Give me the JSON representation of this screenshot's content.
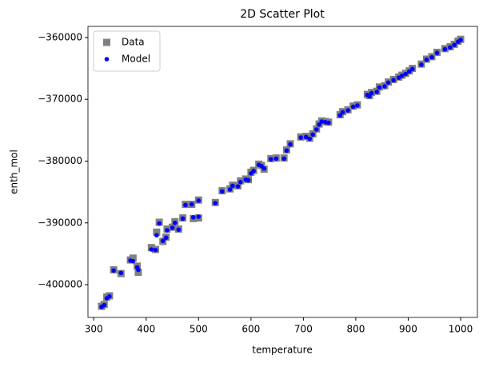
{
  "chart_data": {
    "type": "scatter",
    "title": "2D Scatter Plot",
    "x_label": "temperature",
    "y_label": "enth_mol",
    "x": [
      315,
      320,
      325,
      330,
      338,
      352,
      370,
      375,
      383,
      385,
      410,
      418,
      420,
      425,
      432,
      438,
      440,
      450,
      455,
      462,
      470,
      475,
      487,
      490,
      500,
      500,
      532,
      545,
      560,
      565,
      575,
      580,
      590,
      595,
      600,
      605,
      615,
      620,
      625,
      638,
      648,
      663,
      668,
      675,
      695,
      705,
      712,
      718,
      725,
      730,
      735,
      742,
      748,
      770,
      775,
      785,
      795,
      803,
      822,
      826,
      830,
      840,
      845,
      855,
      862,
      872,
      882,
      888,
      895,
      902,
      908,
      925,
      935,
      945,
      955,
      970,
      980,
      988,
      995,
      1000
    ],
    "series": [
      {
        "name": "Data",
        "color": "#808080",
        "marker": "square",
        "values": [
          -403500,
          -403200,
          -402000,
          -401800,
          -397600,
          -398200,
          -396000,
          -395700,
          -397000,
          -398000,
          -394000,
          -394300,
          -391500,
          -389900,
          -393000,
          -392300,
          -391000,
          -390700,
          -389800,
          -391000,
          -389200,
          -387000,
          -387000,
          -389300,
          -386300,
          -389200,
          -386700,
          -384800,
          -384500,
          -383900,
          -384000,
          -383200,
          -382900,
          -383000,
          -381800,
          -381500,
          -380500,
          -380700,
          -381300,
          -379600,
          -379500,
          -379500,
          -378200,
          -377200,
          -376100,
          -376000,
          -376300,
          -375600,
          -374800,
          -374000,
          -373500,
          -373600,
          -373700,
          -372500,
          -372000,
          -371700,
          -371100,
          -370900,
          -369200,
          -369400,
          -368900,
          -368700,
          -368000,
          -367800,
          -367200,
          -366800,
          -366400,
          -366100,
          -365800,
          -365400,
          -365000,
          -364300,
          -363500,
          -363100,
          -362400,
          -361800,
          -361500,
          -361100,
          -360600,
          -360300
        ]
      },
      {
        "name": "Model",
        "color": "#0000ff",
        "marker": "circle",
        "values": [
          -403600,
          -403300,
          -402200,
          -401900,
          -397700,
          -398100,
          -396100,
          -396200,
          -397200,
          -397600,
          -394300,
          -394400,
          -392000,
          -390100,
          -392900,
          -392400,
          -391200,
          -390800,
          -390000,
          -391100,
          -389300,
          -387100,
          -387000,
          -389100,
          -386400,
          -389000,
          -386800,
          -384900,
          -384600,
          -384000,
          -384100,
          -383400,
          -383000,
          -383100,
          -382000,
          -381600,
          -380600,
          -380800,
          -381200,
          -379700,
          -379600,
          -379600,
          -378300,
          -377300,
          -376200,
          -376100,
          -376400,
          -375700,
          -374900,
          -374100,
          -373600,
          -373700,
          -373800,
          -372600,
          -372100,
          -371800,
          -371200,
          -371000,
          -369300,
          -369500,
          -369000,
          -368800,
          -368100,
          -367900,
          -367300,
          -366900,
          -366500,
          -366200,
          -365900,
          -365500,
          -365100,
          -364400,
          -363600,
          -363200,
          -362500,
          -361900,
          -361600,
          -361200,
          -360700,
          -360400
        ]
      }
    ],
    "xlim": [
      289,
      1032
    ],
    "ylim": [
      -405300,
      -358200
    ],
    "xticks": [
      300,
      400,
      500,
      600,
      700,
      800,
      900,
      1000
    ],
    "yticks": [
      {
        "value": -400000,
        "label": "−400000"
      },
      {
        "value": -390000,
        "label": "−390000"
      },
      {
        "value": -380000,
        "label": "−380000"
      },
      {
        "value": -370000,
        "label": "−370000"
      },
      {
        "value": -360000,
        "label": "−360000"
      }
    ],
    "legend_position": "upper left"
  }
}
